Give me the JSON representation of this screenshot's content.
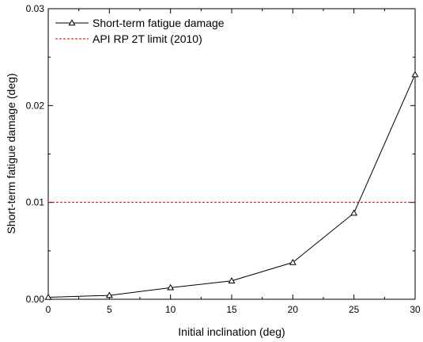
{
  "chart_data": {
    "type": "line",
    "title": "",
    "xlabel": "Initial inclination (deg)",
    "ylabel": "Short-term fatigue damage (deg)",
    "xlim": [
      0,
      30
    ],
    "ylim": [
      0,
      0.03
    ],
    "x_ticks": [
      0,
      5,
      10,
      15,
      20,
      25,
      30
    ],
    "x_tick_labels": [
      "0",
      "5",
      "10",
      "15",
      "20",
      "25",
      "30"
    ],
    "y_ticks": [
      0,
      0.01,
      0.02,
      0.03
    ],
    "y_tick_labels": [
      "0.00",
      "0.01",
      "0.02",
      "0.03"
    ],
    "grid": false,
    "legend_position": "top-left",
    "series": [
      {
        "name": "Short-term fatigue damage",
        "color": "#000000",
        "marker": "triangle-open",
        "x": [
          0,
          5,
          10,
          15,
          20,
          25,
          30
        ],
        "y": [
          0.0002,
          0.0004,
          0.0012,
          0.0019,
          0.0038,
          0.0089,
          0.0232
        ]
      }
    ],
    "reference_lines": [
      {
        "name": "API RP 2T limit (2010)",
        "color": "#cc0000",
        "style": "dashed",
        "y": 0.01
      }
    ]
  }
}
